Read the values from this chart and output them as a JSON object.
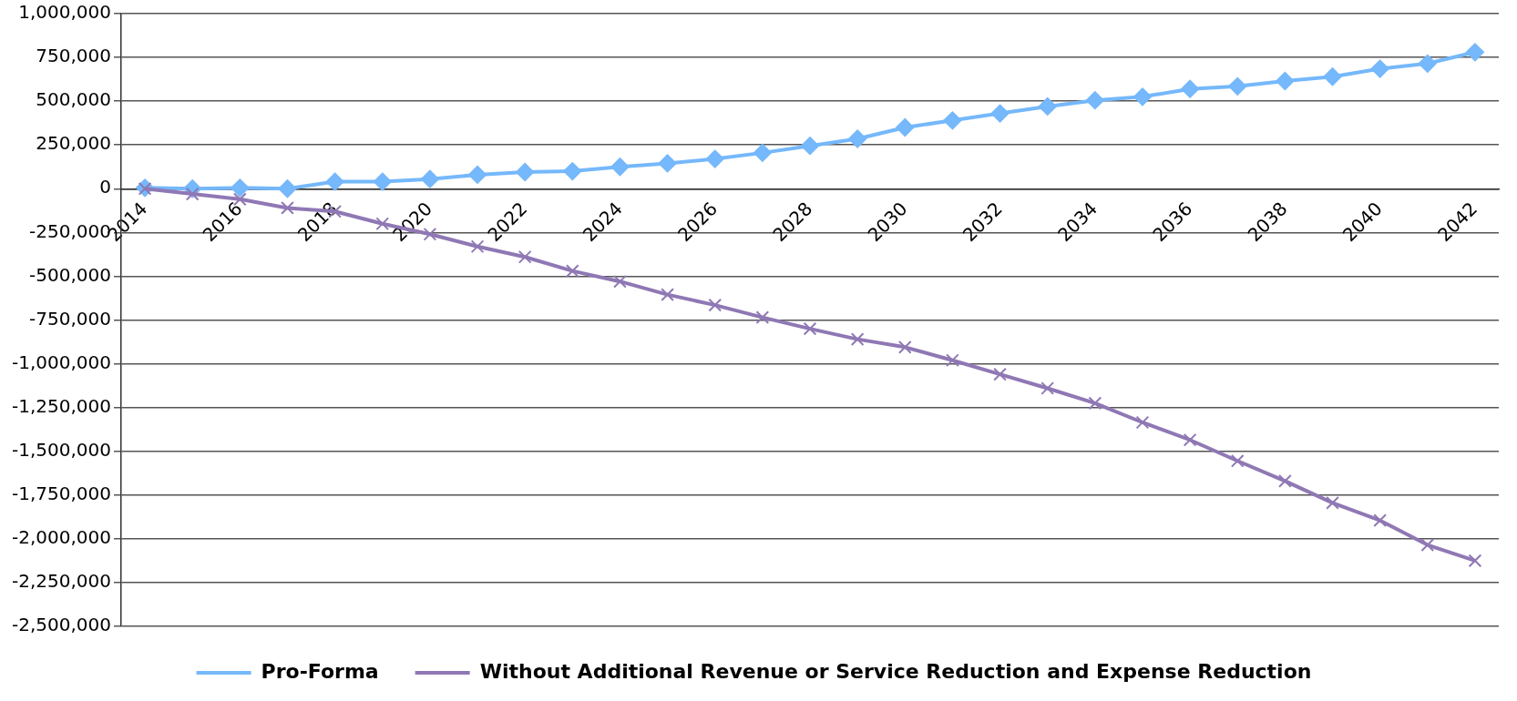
{
  "chart_data": {
    "type": "line",
    "categories": [
      "2014",
      null,
      "2016",
      null,
      "2018",
      null,
      "2020",
      null,
      "2022",
      null,
      "2024",
      null,
      "2026",
      null,
      "2028",
      null,
      "2030",
      null,
      "2032",
      null,
      "2034",
      null,
      "2036",
      null,
      "2038",
      null,
      "2040",
      null,
      "2042"
    ],
    "series": [
      {
        "name": "Pro-Forma",
        "color": "#75b8fb",
        "marker": "diamond",
        "values": [
          5000,
          0,
          5000,
          0,
          40000,
          40000,
          55000,
          80000,
          95000,
          100000,
          125000,
          145000,
          170000,
          205000,
          245000,
          285000,
          350000,
          390000,
          430000,
          470000,
          505000,
          525000,
          570000,
          585000,
          615000,
          640000,
          685000,
          715000,
          780000
        ]
      },
      {
        "name": "Without Additional Revenue or Service Reduction and Expense Reduction",
        "color": "#8f78b4",
        "marker": "cross",
        "values": [
          0,
          -30000,
          -60000,
          -110000,
          -130000,
          -200000,
          -260000,
          -330000,
          -390000,
          -470000,
          -530000,
          -605000,
          -665000,
          -735000,
          -800000,
          -860000,
          -905000,
          -980000,
          -1060000,
          -1140000,
          -1225000,
          -1335000,
          -1435000,
          -1555000,
          -1670000,
          -1795000,
          -1895000,
          -2035000,
          -2125000
        ]
      }
    ],
    "ylim": [
      -2500000,
      1000000
    ],
    "yticks": [
      {
        "value": 1000000,
        "label": "1,000,000"
      },
      {
        "value": 750000,
        "label": "750,000"
      },
      {
        "value": 500000,
        "label": "500,000"
      },
      {
        "value": 250000,
        "label": "250,000"
      },
      0,
      {
        "value": -250000,
        "label": "-250,000"
      },
      {
        "value": -500000,
        "label": "-500,000"
      },
      {
        "value": -750000,
        "label": "-750,000"
      },
      {
        "value": -1000000,
        "label": "-1,000,000"
      },
      {
        "value": -1250000,
        "label": "-1,250,000"
      },
      {
        "value": -1500000,
        "label": "-1,500,000"
      },
      {
        "value": -1750000,
        "label": "-1,750,000"
      },
      {
        "value": -2000000,
        "label": "-2,000,000"
      },
      {
        "value": -2250000,
        "label": "-2,250,000"
      },
      {
        "value": -2500000,
        "label": "-2,500,000"
      }
    ],
    "grid": "y",
    "legend": "bottom",
    "line_style": "solid"
  }
}
